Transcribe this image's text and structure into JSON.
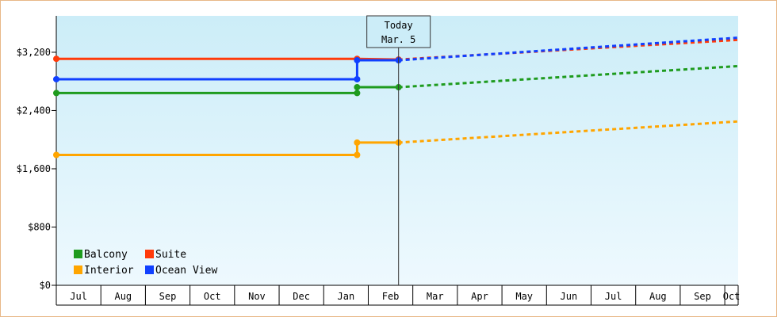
{
  "chart_data": {
    "type": "line",
    "title": "",
    "xlabel": "",
    "ylabel": "",
    "ylim": [
      0,
      3700
    ],
    "y_ticks": [
      {
        "value": 0,
        "label": "$0"
      },
      {
        "value": 800,
        "label": "$800"
      },
      {
        "value": 1600,
        "label": "$1,600"
      },
      {
        "value": 2400,
        "label": "$2,400"
      },
      {
        "value": 3200,
        "label": "$3,200"
      }
    ],
    "x_months": [
      "Jul",
      "Aug",
      "Sep",
      "Oct",
      "Nov",
      "Dec",
      "Jan",
      "Feb",
      "Mar",
      "Apr",
      "May",
      "Jun",
      "Jul",
      "Aug",
      "Sep",
      "Oct"
    ],
    "x_range_months": [
      0,
      15.3
    ],
    "today": {
      "line1": "Today",
      "line2": "Mar. 5",
      "month_pos": 7.68
    },
    "legend_placement": "bottom-left",
    "grid": false,
    "background": {
      "top": "#ccedf8",
      "bottom": "#eef9fe"
    },
    "series": [
      {
        "name": "Balcony",
        "color": "#1e9b1e",
        "history": [
          [
            0,
            2640
          ],
          [
            6.75,
            2640
          ],
          [
            6.75,
            2720
          ],
          [
            7.68,
            2720
          ]
        ],
        "markers": [
          [
            0,
            2640
          ],
          [
            6.75,
            2640
          ],
          [
            6.75,
            2720
          ],
          [
            7.68,
            2720
          ]
        ],
        "forecast": [
          [
            7.68,
            2720
          ],
          [
            15.3,
            3010
          ]
        ]
      },
      {
        "name": "Suite",
        "color": "#ff3a0a",
        "history": [
          [
            0,
            3110
          ],
          [
            6.75,
            3110
          ],
          [
            7.68,
            3100
          ]
        ],
        "markers": [
          [
            0,
            3110
          ],
          [
            6.75,
            3110
          ],
          [
            7.68,
            3100
          ]
        ],
        "forecast": [
          [
            7.68,
            3100
          ],
          [
            15.3,
            3370
          ]
        ]
      },
      {
        "name": "Interior",
        "color": "#ffa500",
        "history": [
          [
            0,
            1790
          ],
          [
            6.75,
            1790
          ],
          [
            6.75,
            1960
          ],
          [
            7.68,
            1960
          ]
        ],
        "markers": [
          [
            0,
            1790
          ],
          [
            6.75,
            1790
          ],
          [
            6.75,
            1960
          ],
          [
            7.68,
            1960
          ]
        ],
        "forecast": [
          [
            7.68,
            1960
          ],
          [
            15.3,
            2250
          ]
        ]
      },
      {
        "name": "Ocean View",
        "color": "#1040ff",
        "history": [
          [
            0,
            2830
          ],
          [
            6.75,
            2830
          ],
          [
            6.75,
            3090
          ],
          [
            7.68,
            3090
          ]
        ],
        "markers": [
          [
            0,
            2830
          ],
          [
            6.75,
            2830
          ],
          [
            6.75,
            3090
          ],
          [
            7.68,
            3090
          ]
        ],
        "forecast": [
          [
            7.68,
            3090
          ],
          [
            15.3,
            3400
          ]
        ]
      }
    ],
    "legend": [
      {
        "name": "Balcony",
        "color": "#1e9b1e"
      },
      {
        "name": "Suite",
        "color": "#ff3a0a"
      },
      {
        "name": "Interior",
        "color": "#ffa500"
      },
      {
        "name": "Ocean View",
        "color": "#1040ff"
      }
    ]
  }
}
